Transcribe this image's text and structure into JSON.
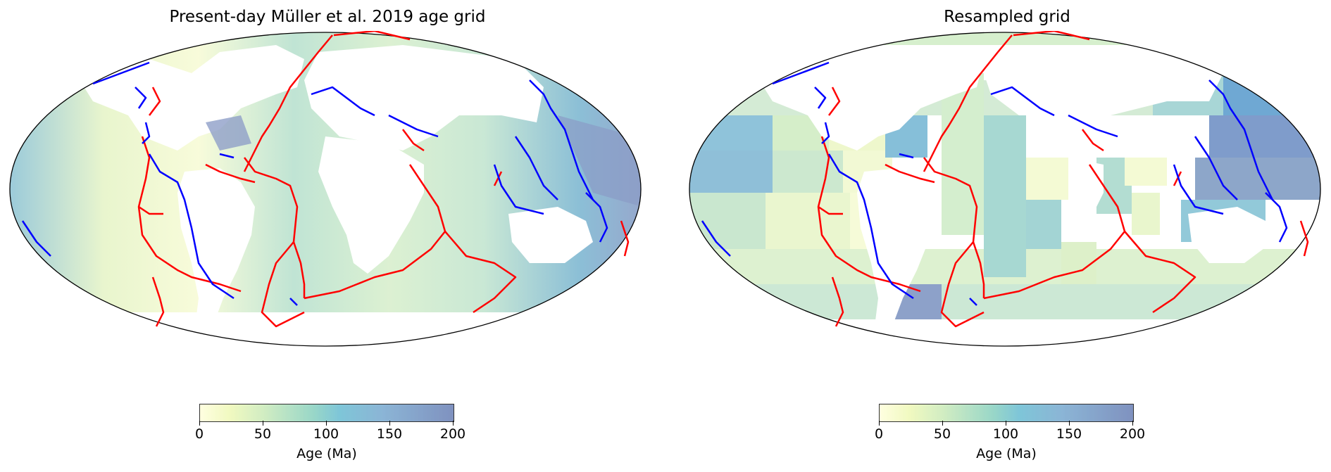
{
  "panels": [
    {
      "title": "Present-day Müller et al. 2019 age grid"
    },
    {
      "title": "Resampled grid"
    }
  ],
  "colorbar": {
    "label": "Age (Ma)",
    "ticks": [
      "0",
      "50",
      "100",
      "150",
      "200"
    ],
    "range": [
      0,
      200
    ],
    "colormap": [
      "#ffffd9",
      "#edf8b1",
      "#c7e9b4",
      "#7fcdbb",
      "#5fb8cf",
      "#6fa3cc",
      "#6077b0"
    ]
  },
  "legend_colors": {
    "ridges_and_transforms": "#ff0000",
    "subduction_zones": "#0000ff",
    "land_mask": "#ffffff"
  }
}
